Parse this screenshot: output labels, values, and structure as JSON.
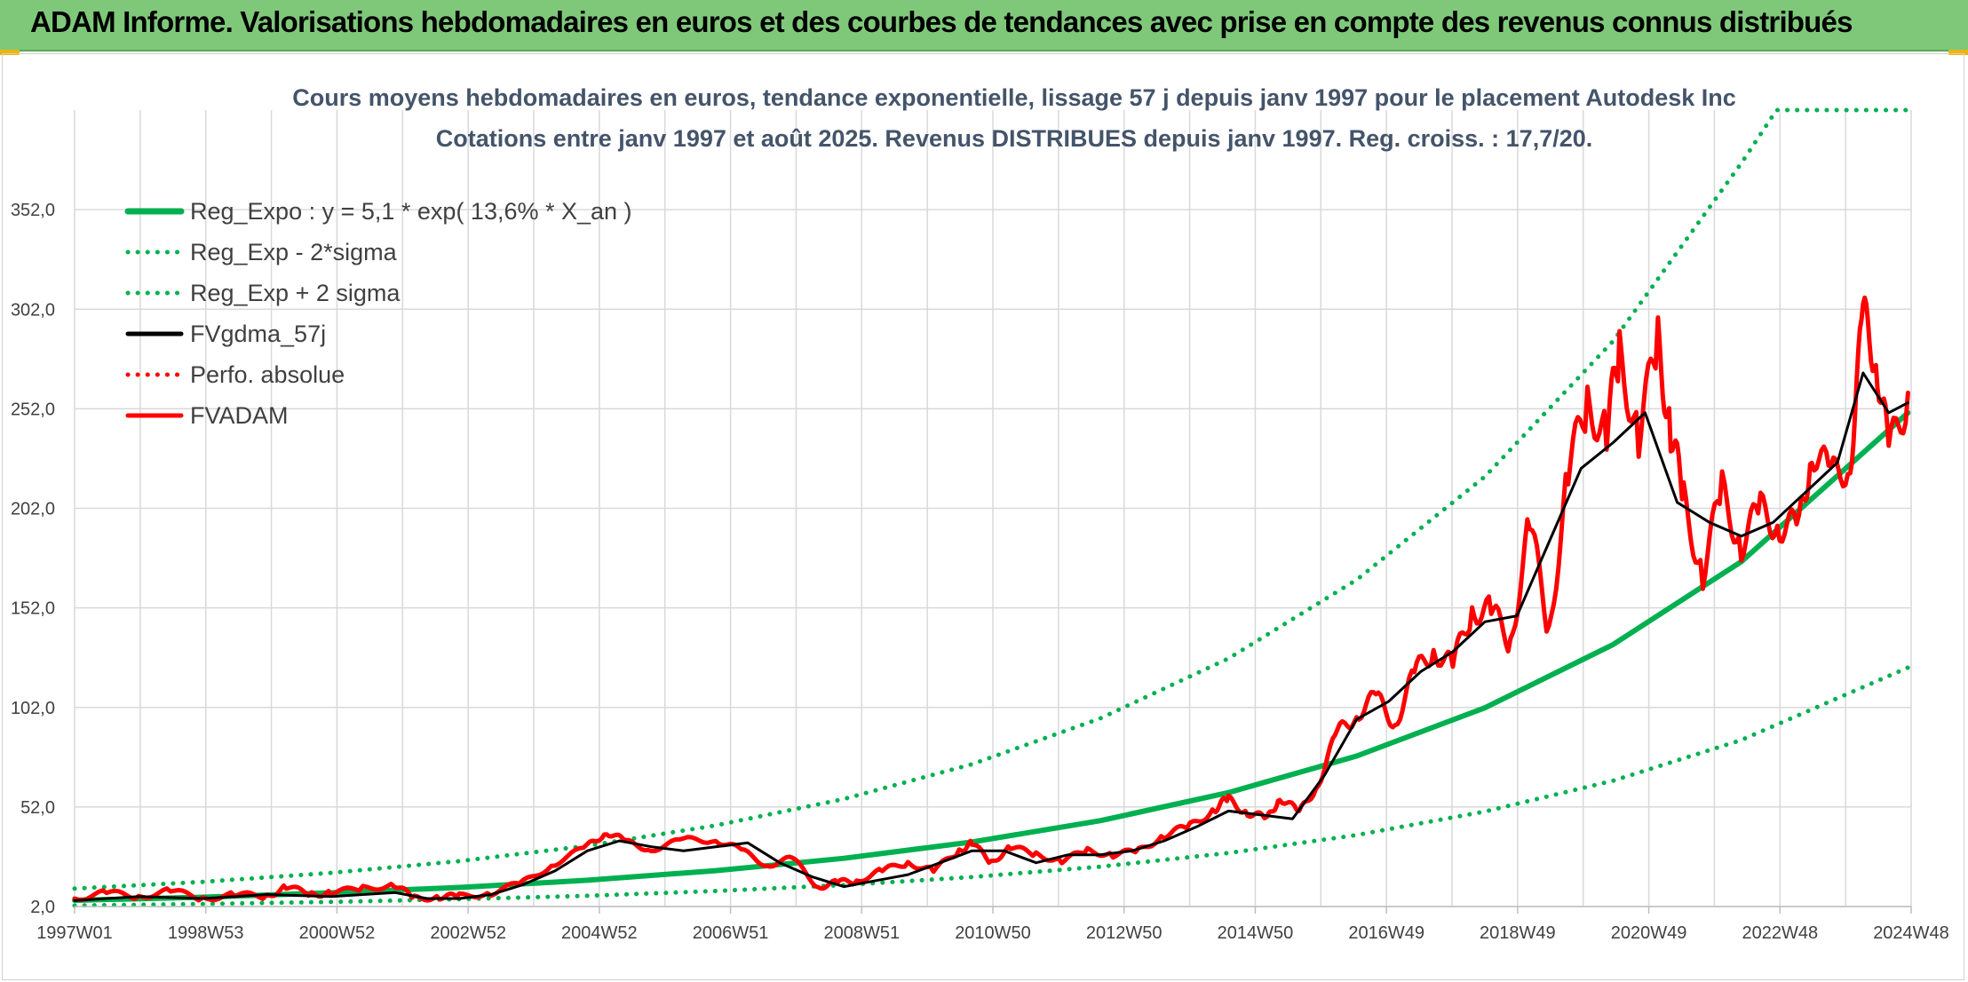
{
  "banner": {
    "title": "ADAM Informe. Valorisations hebdomadaires en euros et des courbes de tendances avec prise en compte des revenus connus distribués"
  },
  "colors": {
    "banner_bg": "#7fc87a",
    "reg_green": "#00b050",
    "fvadam_red": "#ff0000",
    "smooth_black": "#000000",
    "grid": "#d9d9d9",
    "title_text": "#44546a"
  },
  "chart_data": {
    "type": "line",
    "title": "Cours moyens hebdomadaires en euros, tendance exponentielle, lissage 57 j depuis janv 1997 pour le placement Autodesk Inc",
    "subtitle": "Cotations entre janv 1997 et août 2025. Revenus DISTRIBUES depuis janv 1997. Reg. croiss. : 17,7/20.",
    "x_tick_labels": [
      "1997W01",
      "1998W53",
      "2000W52",
      "2002W52",
      "2004W52",
      "2006W51",
      "2008W51",
      "2010W50",
      "2012W50",
      "2014W50",
      "2016W49",
      "2018W49",
      "2020W49",
      "2022W48",
      "2024W48"
    ],
    "y_tick_labels": [
      "2,0",
      "52,0",
      "102,0",
      "152,0",
      "202,0",
      "252,0",
      "302,0",
      "352,0"
    ],
    "ylim": [
      2,
      402
    ],
    "xlim": [
      1997.0,
      2025.65
    ],
    "legend_position": "top-left",
    "grid": true,
    "series": [
      {
        "name": "Reg_Expo : y = 5,1 * exp( 13,6% *  X_an )",
        "style": "solid",
        "color": "#00b050",
        "x": [
          1997.0,
          1999.0,
          2001.0,
          2003.0,
          2005.0,
          2007.0,
          2009.0,
          2011.0,
          2013.0,
          2015.0,
          2017.0,
          2019.0,
          2021.0,
          2023.0,
          2025.6
        ],
        "y": [
          5.1,
          6.7,
          8.9,
          11.6,
          15.2,
          20.0,
          26.2,
          34.4,
          45.1,
          59.2,
          77.6,
          101.8,
          133.6,
          175.2,
          250.0
        ]
      },
      {
        "name": "Reg_Exp - 2*sigma",
        "style": "dotted",
        "color": "#00b050",
        "x": [
          1997.0,
          1999.0,
          2001.0,
          2003.0,
          2005.0,
          2007.0,
          2009.0,
          2011.0,
          2013.0,
          2015.0,
          2017.0,
          2019.0,
          2021.0,
          2023.0,
          2025.6
        ],
        "y": [
          2.5,
          3.3,
          4.3,
          5.7,
          7.4,
          9.8,
          12.8,
          16.8,
          22.0,
          28.9,
          37.9,
          49.7,
          65.2,
          85.6,
          122.0
        ]
      },
      {
        "name": "Reg_Exp + 2 sigma",
        "style": "dotted",
        "color": "#00b050",
        "x": [
          1997.0,
          1999.0,
          2001.0,
          2003.0,
          2005.0,
          2007.0,
          2009.0,
          2011.0,
          2013.0,
          2015.0,
          2017.0,
          2019.0,
          2021.0,
          2023.0,
          2023.55,
          2025.6
        ],
        "y": [
          11.0,
          14.4,
          18.9,
          24.8,
          32.5,
          42.7,
          56.0,
          73.5,
          96.5,
          126.6,
          166.1,
          217.9,
          286.0,
          375.3,
          402.0,
          402.0
        ]
      },
      {
        "name": "FVgdma_57j",
        "style": "solid",
        "color": "#000000",
        "x": [
          1997.0,
          1998.0,
          1999.0,
          2000.0,
          2001.0,
          2002.0,
          2002.5,
          2003.0,
          2003.5,
          2004.0,
          2004.5,
          2005.0,
          2005.5,
          2006.0,
          2006.5,
          2007.0,
          2007.5,
          2008.0,
          2008.5,
          2009.0,
          2009.5,
          2010.0,
          2010.5,
          2011.0,
          2011.5,
          2012.0,
          2012.5,
          2013.0,
          2013.5,
          2014.0,
          2014.5,
          2015.0,
          2015.5,
          2016.0,
          2016.5,
          2017.0,
          2017.5,
          2018.0,
          2018.5,
          2019.0,
          2019.5,
          2020.0,
          2020.5,
          2021.0,
          2021.5,
          2022.0,
          2022.5,
          2023.0,
          2023.5,
          2024.0,
          2024.5,
          2024.9,
          2025.3,
          2025.6
        ],
        "y": [
          5,
          7,
          6,
          8,
          7,
          9,
          6,
          6,
          8,
          13,
          20,
          30,
          35,
          32,
          30,
          32,
          34,
          24,
          17,
          12,
          15,
          18,
          24,
          30,
          30,
          24,
          28,
          28,
          30,
          35,
          42,
          50,
          48,
          46,
          68,
          96,
          105,
          120,
          130,
          145,
          148,
          185,
          222,
          235,
          250,
          205,
          195,
          188,
          195,
          210,
          225,
          270,
          250,
          255
        ]
      },
      {
        "name": "Perfo. absolue",
        "style": "dotted",
        "color": "#ff0000",
        "x": [],
        "y": []
      },
      {
        "name": "FVADAM",
        "style": "solid",
        "color": "#ff0000",
        "x": [
          1997.0,
          1997.5,
          1998.0,
          1998.5,
          1999.0,
          1999.5,
          2000.0,
          2000.3,
          2000.7,
          2001.0,
          2001.5,
          2002.0,
          2002.3,
          2002.7,
          2003.0,
          2003.5,
          2004.0,
          2004.5,
          2005.0,
          2005.3,
          2005.6,
          2006.0,
          2006.5,
          2007.0,
          2007.4,
          2007.8,
          2008.2,
          2008.6,
          2008.9,
          2009.2,
          2009.6,
          2010.0,
          2010.4,
          2010.8,
          2011.0,
          2011.3,
          2011.6,
          2012.0,
          2012.4,
          2012.8,
          2013.2,
          2013.6,
          2014.0,
          2014.4,
          2014.8,
          2015.0,
          2015.3,
          2015.6,
          2015.8,
          2016.1,
          2016.4,
          2016.7,
          2017.0,
          2017.3,
          2017.6,
          2017.9,
          2018.2,
          2018.5,
          2018.8,
          2019.1,
          2019.4,
          2019.7,
          2020.0,
          2020.3,
          2020.6,
          2020.9,
          2021.1,
          2021.4,
          2021.7,
          2021.9,
          2022.1,
          2022.4,
          2022.7,
          2023.0,
          2023.3,
          2023.6,
          2023.9,
          2024.1,
          2024.4,
          2024.7,
          2024.9,
          2025.1,
          2025.3,
          2025.6
        ],
        "y": [
          6,
          9,
          7,
          10,
          6,
          8,
          7,
          12,
          8,
          9,
          11,
          13,
          6,
          7,
          7,
          9,
          14,
          24,
          32,
          40,
          34,
          31,
          35,
          36,
          30,
          23,
          26,
          12,
          14,
          15,
          20,
          24,
          20,
          30,
          34,
          24,
          32,
          28,
          25,
          30,
          28,
          30,
          38,
          42,
          52,
          55,
          50,
          45,
          58,
          48,
          65,
          88,
          100,
          106,
          95,
          118,
          132,
          122,
          152,
          150,
          135,
          195,
          140,
          220,
          255,
          240,
          280,
          238,
          285,
          242,
          205,
          170,
          210,
          185,
          200,
          195,
          190,
          235,
          215,
          228,
          295,
          282,
          228,
          260
        ]
      }
    ]
  }
}
